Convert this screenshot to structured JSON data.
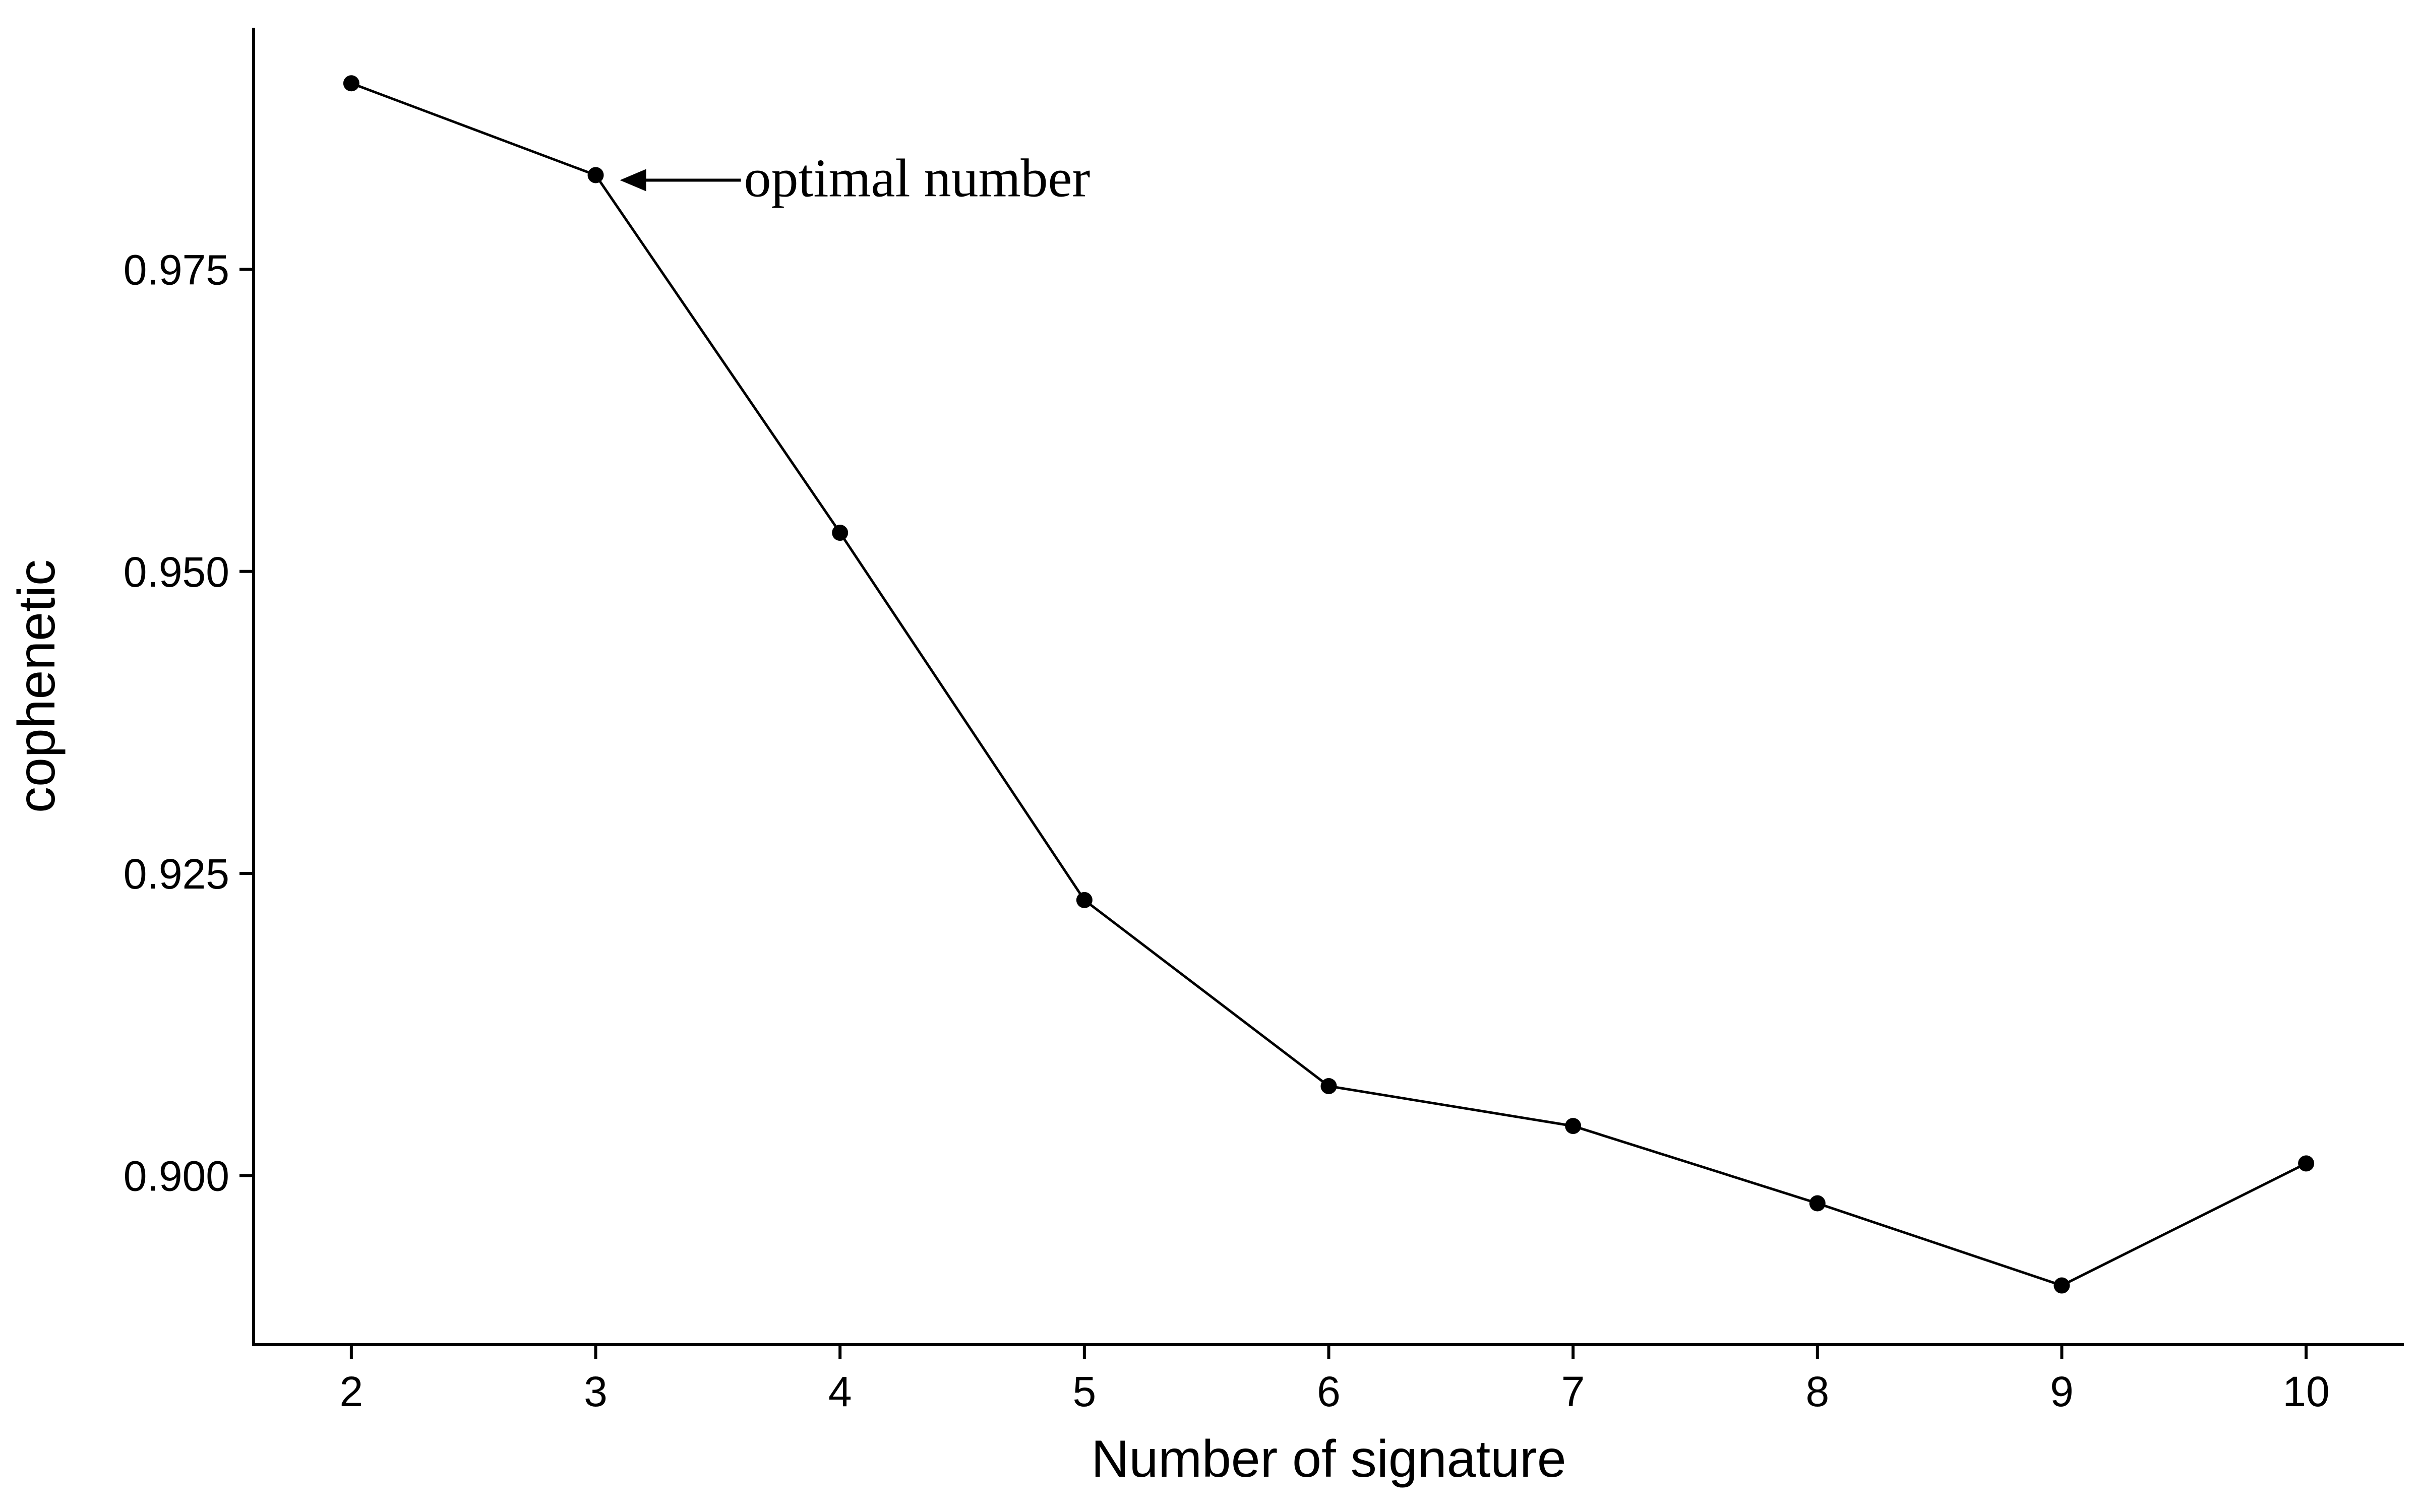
{
  "chart_data": {
    "type": "line",
    "title": "",
    "xlabel": "Number of signature",
    "ylabel": "cophenetic",
    "x": [
      2,
      3,
      4,
      5,
      6,
      7,
      8,
      9,
      10
    ],
    "series": [
      {
        "values": [
          0.9904,
          0.9828,
          0.9532,
          0.9228,
          0.9074,
          0.9041,
          0.8977,
          0.8909,
          0.901
        ]
      }
    ],
    "xticks": [
      "2",
      "3",
      "4",
      "5",
      "6",
      "7",
      "8",
      "9",
      "10"
    ],
    "yticks": [
      "0.900",
      "0.925",
      "0.950",
      "0.975"
    ],
    "ytick_values": [
      0.9,
      0.925,
      0.95,
      0.975
    ],
    "xlim": [
      1.6,
      10.4
    ],
    "ylim": [
      0.886,
      0.995
    ],
    "grid": false,
    "legend": "none",
    "annotations": [
      {
        "text": "optimal number",
        "x": 3,
        "y": 0.9828
      }
    ]
  }
}
